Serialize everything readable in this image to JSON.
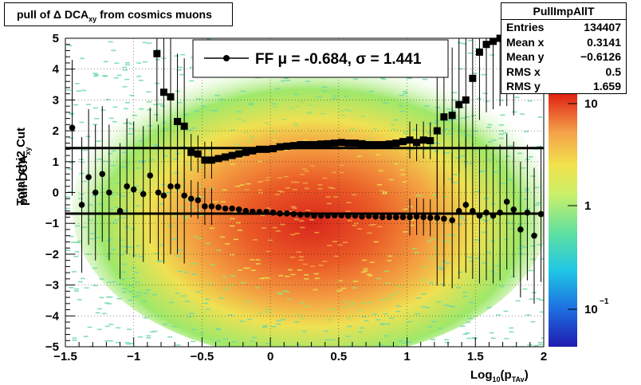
{
  "title_prefix": "pull of Δ DCA",
  "title_sub": "xy",
  "title_suffix": " from cosmics muons",
  "stats": {
    "name": "PullImpAllT",
    "rows": [
      {
        "label": "Entries",
        "value": "134407"
      },
      {
        "label": "Mean x",
        "value": "0.3141"
      },
      {
        "label": "Mean y",
        "value": "−0.6126"
      },
      {
        "label": "RMS x",
        "value": "0.5"
      },
      {
        "label": "RMS y",
        "value": "1.659"
      }
    ]
  },
  "legend": {
    "text": "FF μ = -0.684, σ =   1.441"
  },
  "colorbar": {
    "ticks": [
      "10",
      "1",
      "10"
    ],
    "exp_label": "−1"
  },
  "chart_data": {
    "type": "scatter",
    "x_title_main": "Log",
    "x_title_sub": "10",
    "x_title_paren": "(p",
    "x_title_sub2": "TAv",
    "x_title_close": ")",
    "y_title_line1": "Total chi2 Cut",
    "y_title_line2_main": "pull DCA",
    "y_title_line2_sub": "xy",
    "xlim": [
      -1.5,
      2
    ],
    "ylim": [
      -5,
      5
    ],
    "x_ticks": [
      "−1.5",
      "−1",
      "−0.5",
      "0",
      "0.5",
      "1",
      "1.5",
      "2"
    ],
    "y_ticks": [
      "5",
      "4",
      "3",
      "2",
      "1",
      "0",
      "−1",
      "−2",
      "−3",
      "−4",
      "−5"
    ],
    "z_scale": "log",
    "fit_lines": {
      "mean": -0.684,
      "sigma_line": 1.441
    },
    "series": [
      {
        "marker": "circle",
        "x": [
          -1.45,
          -1.38,
          -1.33,
          -1.28,
          -1.23,
          -1.18,
          -1.1,
          -1.05,
          -1.0,
          -0.93,
          -0.88,
          -0.82,
          -0.78,
          -0.73,
          -0.68,
          -0.63,
          -0.58,
          -0.53,
          -0.48,
          -0.43,
          -0.38,
          -0.33,
          -0.28,
          -0.23,
          -0.18,
          -0.13,
          -0.08,
          -0.03,
          0.02,
          0.07,
          0.12,
          0.17,
          0.22,
          0.27,
          0.32,
          0.37,
          0.42,
          0.47,
          0.52,
          0.57,
          0.62,
          0.67,
          0.72,
          0.77,
          0.82,
          0.87,
          0.92,
          0.97,
          1.02,
          1.07,
          1.12,
          1.17,
          1.22,
          1.27,
          1.33,
          1.38,
          1.43,
          1.48,
          1.53,
          1.58,
          1.63,
          1.68,
          1.73,
          1.78,
          1.83,
          1.88,
          1.93,
          1.98
        ],
        "y": [
          2.1,
          -0.4,
          0.5,
          0.0,
          0.6,
          0.0,
          -0.6,
          0.2,
          0.1,
          -0.05,
          0.55,
          0.0,
          -0.1,
          0.2,
          0.2,
          -0.1,
          -0.2,
          -0.25,
          -0.45,
          -0.45,
          -0.48,
          -0.52,
          -0.52,
          -0.55,
          -0.6,
          -0.62,
          -0.63,
          -0.63,
          -0.65,
          -0.68,
          -0.68,
          -0.7,
          -0.72,
          -0.72,
          -0.75,
          -0.75,
          -0.75,
          -0.74,
          -0.74,
          -0.75,
          -0.75,
          -0.78,
          -0.76,
          -0.78,
          -0.8,
          -0.8,
          -0.8,
          -0.8,
          -0.8,
          -0.78,
          -0.8,
          -0.82,
          -0.82,
          -0.85,
          -0.9,
          -0.6,
          -0.4,
          -0.6,
          -0.75,
          -0.65,
          -0.75,
          -0.65,
          -0.3,
          -0.55,
          -1.2,
          -0.65,
          -1.4,
          -0.7
        ]
      },
      {
        "marker": "square",
        "x": [
          -0.83,
          -0.78,
          -0.73,
          -0.68,
          -0.63,
          -0.58,
          -0.53,
          -0.48,
          -0.43,
          -0.38,
          -0.33,
          -0.28,
          -0.23,
          -0.18,
          -0.13,
          -0.08,
          -0.03,
          0.02,
          0.07,
          0.12,
          0.17,
          0.22,
          0.27,
          0.32,
          0.37,
          0.42,
          0.47,
          0.52,
          0.57,
          0.62,
          0.67,
          0.72,
          0.77,
          0.82,
          0.87,
          0.92,
          0.97,
          1.02,
          1.07,
          1.12,
          1.17,
          1.22,
          1.27,
          1.33,
          1.38,
          1.43,
          1.48,
          1.53,
          1.58,
          1.63,
          1.68,
          1.73,
          1.78
        ],
        "y": [
          4.5,
          3.25,
          3.1,
          2.3,
          2.15,
          1.3,
          1.25,
          1.05,
          1.05,
          1.1,
          1.15,
          1.2,
          1.25,
          1.3,
          1.35,
          1.4,
          1.4,
          1.42,
          1.48,
          1.5,
          1.52,
          1.55,
          1.55,
          1.55,
          1.57,
          1.58,
          1.6,
          1.62,
          1.6,
          1.6,
          1.58,
          1.55,
          1.55,
          1.55,
          1.57,
          1.6,
          1.65,
          1.7,
          1.62,
          1.7,
          1.68,
          2.0,
          2.45,
          2.5,
          2.85,
          3.0,
          3.7,
          4.55,
          4.8,
          4.9,
          5.0,
          5.0,
          4.7
        ]
      }
    ]
  }
}
